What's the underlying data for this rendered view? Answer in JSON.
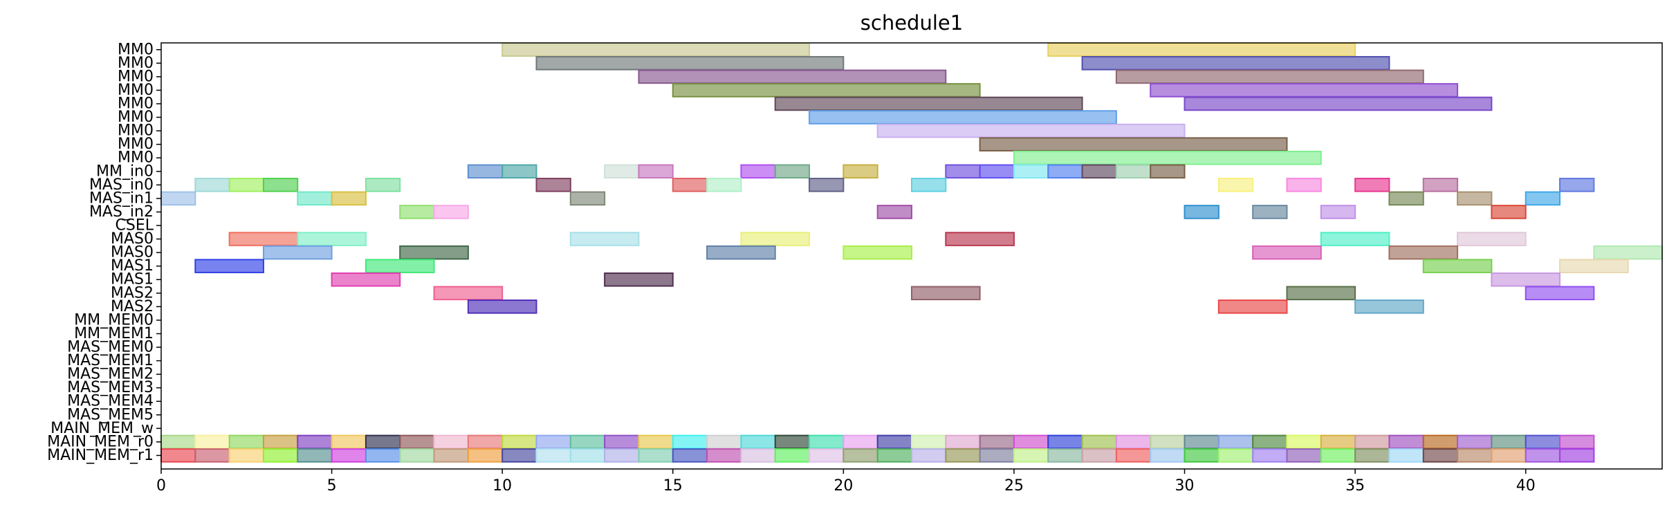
{
  "chart_data": {
    "type": "gantt",
    "title": "schedule1",
    "xlabel": "",
    "ylabel": "",
    "xlim": [
      0,
      44
    ],
    "grid": false,
    "legend": "none",
    "x_ticks": [
      0,
      5,
      10,
      15,
      20,
      25,
      30,
      35,
      40
    ],
    "rows": [
      "MM0",
      "MM0",
      "MM0",
      "MM0",
      "MM0",
      "MM0",
      "MM0",
      "MM0",
      "MM0",
      "MM_in0",
      "MAS_in0",
      "MAS_in1",
      "MAS_in2",
      "CSEL",
      "MAS0",
      "MAS0",
      "MAS1",
      "MAS1",
      "MAS2",
      "MAS2",
      "MM_MEM0",
      "MM_MEM1",
      "MAS_MEM0",
      "MAS_MEM1",
      "MAS_MEM2",
      "MAS_MEM3",
      "MAS_MEM4",
      "MAS_MEM5",
      "MAIN_MEM_w",
      "MAIN_MEM_r0",
      "MAIN_MEM_r1"
    ],
    "tasks": [
      {
        "row": 0,
        "start": 10,
        "end": 19,
        "color": "#c8c890"
      },
      {
        "row": 0,
        "start": 26,
        "end": 35,
        "color": "#e8d060"
      },
      {
        "row": 1,
        "start": 11,
        "end": 20,
        "color": "#707878"
      },
      {
        "row": 1,
        "start": 27,
        "end": 36,
        "color": "#5050b0"
      },
      {
        "row": 2,
        "start": 14,
        "end": 23,
        "color": "#885890"
      },
      {
        "row": 2,
        "start": 28,
        "end": 37,
        "color": "#906870"
      },
      {
        "row": 3,
        "start": 15,
        "end": 24,
        "color": "#789040"
      },
      {
        "row": 3,
        "start": 29,
        "end": 38,
        "color": "#9050d0"
      },
      {
        "row": 4,
        "start": 18,
        "end": 27,
        "color": "#604858"
      },
      {
        "row": 4,
        "start": 30,
        "end": 39,
        "color": "#7848c8"
      },
      {
        "row": 5,
        "start": 19,
        "end": 28,
        "color": "#60a0e8"
      },
      {
        "row": 6,
        "start": 21,
        "end": 30,
        "color": "#c8b0f0"
      },
      {
        "row": 7,
        "start": 24,
        "end": 33,
        "color": "#786048"
      },
      {
        "row": 8,
        "start": 25,
        "end": 34,
        "color": "#80f090"
      },
      {
        "row": 9,
        "start": 9,
        "end": 10,
        "color": "#6090d0"
      },
      {
        "row": 9,
        "start": 10,
        "end": 11,
        "color": "#50a8a8"
      },
      {
        "row": 9,
        "start": 13,
        "end": 14,
        "color": "#d0e0d8"
      },
      {
        "row": 9,
        "start": 14,
        "end": 15,
        "color": "#c878c0"
      },
      {
        "row": 9,
        "start": 17,
        "end": 18,
        "color": "#b050f0"
      },
      {
        "row": 9,
        "start": 18,
        "end": 19,
        "color": "#70a888"
      },
      {
        "row": 9,
        "start": 20,
        "end": 21,
        "color": "#c8b040"
      },
      {
        "row": 9,
        "start": 23,
        "end": 24,
        "color": "#7050e0"
      },
      {
        "row": 9,
        "start": 24,
        "end": 25,
        "color": "#6050f0"
      },
      {
        "row": 9,
        "start": 25,
        "end": 26,
        "color": "#80e8f0"
      },
      {
        "row": 9,
        "start": 26,
        "end": 27,
        "color": "#5080f0"
      },
      {
        "row": 9,
        "start": 27,
        "end": 28,
        "color": "#604860"
      },
      {
        "row": 9,
        "start": 28,
        "end": 29,
        "color": "#a0d0b0"
      },
      {
        "row": 9,
        "start": 29,
        "end": 30,
        "color": "#786048"
      },
      {
        "row": 10,
        "start": 1,
        "end": 2,
        "color": "#a0d8d8"
      },
      {
        "row": 10,
        "start": 2,
        "end": 3,
        "color": "#a0f060"
      },
      {
        "row": 10,
        "start": 3,
        "end": 4,
        "color": "#50d050"
      },
      {
        "row": 10,
        "start": 6,
        "end": 7,
        "color": "#80e0a0"
      },
      {
        "row": 10,
        "start": 11,
        "end": 12,
        "color": "#804060"
      },
      {
        "row": 10,
        "start": 15,
        "end": 16,
        "color": "#e06060"
      },
      {
        "row": 10,
        "start": 16,
        "end": 17,
        "color": "#b0f0c8"
      },
      {
        "row": 10,
        "start": 19,
        "end": 20,
        "color": "#606088"
      },
      {
        "row": 10,
        "start": 22,
        "end": 23,
        "color": "#60d0e0"
      },
      {
        "row": 10,
        "start": 31,
        "end": 32,
        "color": "#f8f080"
      },
      {
        "row": 10,
        "start": 33,
        "end": 34,
        "color": "#f888e0"
      },
      {
        "row": 10,
        "start": 35,
        "end": 36,
        "color": "#e83890"
      },
      {
        "row": 10,
        "start": 37,
        "end": 38,
        "color": "#b870a0"
      },
      {
        "row": 10,
        "start": 41,
        "end": 42,
        "color": "#6078e0"
      },
      {
        "row": 11,
        "start": 0,
        "end": 1,
        "color": "#a0c0e8"
      },
      {
        "row": 11,
        "start": 4,
        "end": 5,
        "color": "#70e8c8"
      },
      {
        "row": 11,
        "start": 5,
        "end": 6,
        "color": "#d8c040"
      },
      {
        "row": 11,
        "start": 12,
        "end": 13,
        "color": "#808878"
      },
      {
        "row": 11,
        "start": 36,
        "end": 37,
        "color": "#788858"
      },
      {
        "row": 11,
        "start": 38,
        "end": 39,
        "color": "#a89070"
      },
      {
        "row": 11,
        "start": 40,
        "end": 41,
        "color": "#40a8e8"
      },
      {
        "row": 12,
        "start": 7,
        "end": 8,
        "color": "#90e070"
      },
      {
        "row": 12,
        "start": 8,
        "end": 9,
        "color": "#f8a8e8"
      },
      {
        "row": 12,
        "start": 21,
        "end": 22,
        "color": "#a050a8"
      },
      {
        "row": 12,
        "start": 30,
        "end": 31,
        "color": "#3090d0"
      },
      {
        "row": 12,
        "start": 32,
        "end": 33,
        "color": "#6888a0"
      },
      {
        "row": 12,
        "start": 34,
        "end": 35,
        "color": "#c090e8"
      },
      {
        "row": 12,
        "start": 39,
        "end": 40,
        "color": "#d84838"
      },
      {
        "row": 14,
        "start": 2,
        "end": 4,
        "color": "#f07060"
      },
      {
        "row": 14,
        "start": 4,
        "end": 6,
        "color": "#80f0c8"
      },
      {
        "row": 14,
        "start": 12,
        "end": 14,
        "color": "#a8e0e8"
      },
      {
        "row": 14,
        "start": 17,
        "end": 19,
        "color": "#e8f078"
      },
      {
        "row": 14,
        "start": 23,
        "end": 25,
        "color": "#b83850"
      },
      {
        "row": 14,
        "start": 34,
        "end": 36,
        "color": "#50f0c8"
      },
      {
        "row": 14,
        "start": 38,
        "end": 40,
        "color": "#e0c8d8"
      },
      {
        "row": 15,
        "start": 3,
        "end": 5,
        "color": "#70a0e0"
      },
      {
        "row": 15,
        "start": 7,
        "end": 9,
        "color": "#406848"
      },
      {
        "row": 15,
        "start": 16,
        "end": 18,
        "color": "#6080a8"
      },
      {
        "row": 15,
        "start": 20,
        "end": 22,
        "color": "#a8f048"
      },
      {
        "row": 15,
        "start": 32,
        "end": 34,
        "color": "#d860b8"
      },
      {
        "row": 15,
        "start": 36,
        "end": 38,
        "color": "#a07060"
      },
      {
        "row": 15,
        "start": 42,
        "end": 44,
        "color": "#b0e8b0"
      },
      {
        "row": 16,
        "start": 1,
        "end": 3,
        "color": "#3040e8"
      },
      {
        "row": 16,
        "start": 6,
        "end": 8,
        "color": "#40e878"
      },
      {
        "row": 16,
        "start": 37,
        "end": 39,
        "color": "#78d050"
      },
      {
        "row": 16,
        "start": 41,
        "end": 43,
        "color": "#e8d8b0"
      },
      {
        "row": 17,
        "start": 5,
        "end": 7,
        "color": "#e040b0"
      },
      {
        "row": 17,
        "start": 13,
        "end": 15,
        "color": "#503050"
      },
      {
        "row": 17,
        "start": 39,
        "end": 41,
        "color": "#c898e0"
      },
      {
        "row": 18,
        "start": 8,
        "end": 10,
        "color": "#f06090"
      },
      {
        "row": 18,
        "start": 22,
        "end": 24,
        "color": "#906068"
      },
      {
        "row": 18,
        "start": 33,
        "end": 35,
        "color": "#587048"
      },
      {
        "row": 18,
        "start": 40,
        "end": 42,
        "color": "#9050f0"
      },
      {
        "row": 19,
        "start": 9,
        "end": 11,
        "color": "#5030b8"
      },
      {
        "row": 19,
        "start": 31,
        "end": 33,
        "color": "#e84848"
      },
      {
        "row": 19,
        "start": 35,
        "end": 37,
        "color": "#60a8c8"
      }
    ],
    "main_mem_r0_colors": [
      "#a8d888",
      "#f8f0a0",
      "#90d860",
      "#c8a040",
      "#8040c0",
      "#f0c860",
      "#303050",
      "#905858",
      "#f0b8d0",
      "#e87878",
      "#c0d840",
      "#90a8f0",
      "#60c0a0",
      "#9050c8",
      "#e8c850",
      "#40f0f0",
      "#d0d0d0",
      "#50d8d8",
      "#304838",
      "#40e0b0",
      "#e8a0f0",
      "#4040a8",
      "#d0f0b0",
      "#e0a8d0",
      "#986888",
      "#d050d0",
      "#3040d8",
      "#a0c050",
      "#e090e0",
      "#b8d0a0",
      "#608890",
      "#80a0e0",
      "#508840",
      "#d8f860",
      "#d8b040",
      "#d098a0",
      "#a050c0",
      "#b86820",
      "#a060d0",
      "#609080",
      "#5050d0",
      "#c050d0"
    ],
    "main_mem_r1_colors": [
      "#e84850",
      "#c86070",
      "#f8d070",
      "#90f030",
      "#589090",
      "#d040e0",
      "#5890e8",
      "#a0d8a0",
      "#c09878",
      "#f0a040",
      "#4848a0",
      "#b0e0f0",
      "#a0e0e8",
      "#b0b0e8",
      "#80d0b0",
      "#4858c0",
      "#c050b0",
      "#d8c0e0",
      "#60f060",
      "#e0c0e8",
      "#90a070",
      "#50b060",
      "#b8b0e8",
      "#989858",
      "#8080a0",
      "#c0f088",
      "#88b8a0",
      "#c8a0a8",
      "#f06060",
      "#a0c8f0",
      "#40c840",
      "#a0f070",
      "#a080f0",
      "#9060b8",
      "#70f060",
      "#809060",
      "#a0d8f8",
      "#704848",
      "#b88868",
      "#e0a070",
      "#a058e0",
      "#a040e0"
    ]
  }
}
